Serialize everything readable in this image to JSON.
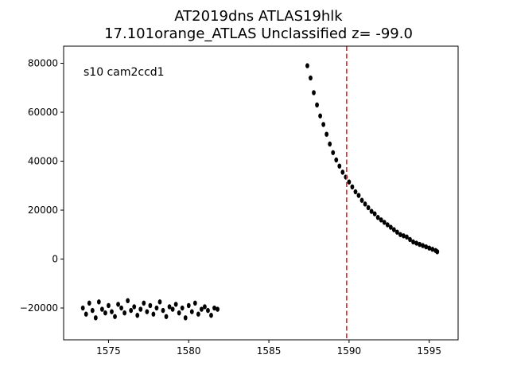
{
  "chart_data": {
    "type": "scatter",
    "title_line1": "AT2019dns  ATLAS19hlk",
    "title_line2": "17.101orange_ATLAS Unclassified z= -99.0",
    "xlabel": "",
    "ylabel": "",
    "xlim": [
      1572.2,
      1596.8
    ],
    "ylim": [
      -33000,
      87000
    ],
    "x_ticks": [
      1575,
      1580,
      1585,
      1590,
      1595
    ],
    "x_tick_labels": [
      "1575",
      "1580",
      "1585",
      "1590",
      "1595"
    ],
    "y_ticks": [
      -20000,
      0,
      20000,
      40000,
      60000,
      80000
    ],
    "y_tick_labels": [
      "−20000",
      "0",
      "20000",
      "40000",
      "60000",
      "80000"
    ],
    "annotation": "s10 cam2ccd1",
    "vline": {
      "x": 1589.85,
      "color": "#d62728",
      "style": "dashed"
    },
    "marker_color": "#000000",
    "grid": false,
    "series": [
      {
        "values": [
          {
            "x": 1573.4,
            "y": -20000
          },
          {
            "x": 1573.6,
            "y": -22500
          },
          {
            "x": 1573.8,
            "y": -18000
          },
          {
            "x": 1574.0,
            "y": -21000
          },
          {
            "x": 1574.2,
            "y": -24000
          },
          {
            "x": 1574.4,
            "y": -17500
          },
          {
            "x": 1574.6,
            "y": -20500
          },
          {
            "x": 1574.8,
            "y": -22000
          },
          {
            "x": 1575.0,
            "y": -19000
          },
          {
            "x": 1575.2,
            "y": -21500
          },
          {
            "x": 1575.4,
            "y": -23500
          },
          {
            "x": 1575.6,
            "y": -18500
          },
          {
            "x": 1575.8,
            "y": -20000
          },
          {
            "x": 1576.0,
            "y": -22000
          },
          {
            "x": 1576.2,
            "y": -17000
          },
          {
            "x": 1576.4,
            "y": -21000
          },
          {
            "x": 1576.6,
            "y": -19500
          },
          {
            "x": 1576.8,
            "y": -23000
          },
          {
            "x": 1577.0,
            "y": -20500
          },
          {
            "x": 1577.2,
            "y": -18000
          },
          {
            "x": 1577.4,
            "y": -21500
          },
          {
            "x": 1577.6,
            "y": -19000
          },
          {
            "x": 1577.8,
            "y": -22500
          },
          {
            "x": 1578.0,
            "y": -20000
          },
          {
            "x": 1578.2,
            "y": -17500
          },
          {
            "x": 1578.4,
            "y": -21000
          },
          {
            "x": 1578.6,
            "y": -23500
          },
          {
            "x": 1578.8,
            "y": -19500
          },
          {
            "x": 1579.0,
            "y": -20500
          },
          {
            "x": 1579.2,
            "y": -18500
          },
          {
            "x": 1579.4,
            "y": -22000
          },
          {
            "x": 1579.6,
            "y": -20000
          },
          {
            "x": 1579.8,
            "y": -24000
          },
          {
            "x": 1580.0,
            "y": -19000
          },
          {
            "x": 1580.2,
            "y": -21500
          },
          {
            "x": 1580.4,
            "y": -18000
          },
          {
            "x": 1580.6,
            "y": -22500
          },
          {
            "x": 1580.8,
            "y": -20500
          },
          {
            "x": 1581.0,
            "y": -19500
          },
          {
            "x": 1581.2,
            "y": -21000
          },
          {
            "x": 1581.4,
            "y": -23000
          },
          {
            "x": 1581.6,
            "y": -20000
          },
          {
            "x": 1581.8,
            "y": -20500
          },
          {
            "x": 1587.4,
            "y": 79000
          },
          {
            "x": 1587.6,
            "y": 74000
          },
          {
            "x": 1587.8,
            "y": 68000
          },
          {
            "x": 1588.0,
            "y": 63000
          },
          {
            "x": 1588.2,
            "y": 58500
          },
          {
            "x": 1588.4,
            "y": 55000
          },
          {
            "x": 1588.6,
            "y": 51000
          },
          {
            "x": 1588.8,
            "y": 47000
          },
          {
            "x": 1589.0,
            "y": 43500
          },
          {
            "x": 1589.2,
            "y": 40500
          },
          {
            "x": 1589.4,
            "y": 38000
          },
          {
            "x": 1589.6,
            "y": 35500
          },
          {
            "x": 1589.8,
            "y": 33500
          },
          {
            "x": 1590.0,
            "y": 31500
          },
          {
            "x": 1590.2,
            "y": 29500
          },
          {
            "x": 1590.4,
            "y": 27500
          },
          {
            "x": 1590.6,
            "y": 26000
          },
          {
            "x": 1590.8,
            "y": 24000
          },
          {
            "x": 1591.0,
            "y": 22500
          },
          {
            "x": 1591.2,
            "y": 21000
          },
          {
            "x": 1591.4,
            "y": 19500
          },
          {
            "x": 1591.6,
            "y": 18500
          },
          {
            "x": 1591.8,
            "y": 17000
          },
          {
            "x": 1592.0,
            "y": 16000
          },
          {
            "x": 1592.2,
            "y": 15000
          },
          {
            "x": 1592.4,
            "y": 14000
          },
          {
            "x": 1592.6,
            "y": 13000
          },
          {
            "x": 1592.8,
            "y": 12000
          },
          {
            "x": 1593.0,
            "y": 11000
          },
          {
            "x": 1593.2,
            "y": 10000
          },
          {
            "x": 1593.4,
            "y": 9500
          },
          {
            "x": 1593.6,
            "y": 9000
          },
          {
            "x": 1593.8,
            "y": 8000
          },
          {
            "x": 1594.0,
            "y": 7000
          },
          {
            "x": 1594.2,
            "y": 6500
          },
          {
            "x": 1594.4,
            "y": 6000
          },
          {
            "x": 1594.6,
            "y": 5500
          },
          {
            "x": 1594.8,
            "y": 5000
          },
          {
            "x": 1595.0,
            "y": 4500
          },
          {
            "x": 1595.2,
            "y": 4000
          },
          {
            "x": 1595.4,
            "y": 3500
          },
          {
            "x": 1595.5,
            "y": 3000
          }
        ]
      }
    ]
  }
}
